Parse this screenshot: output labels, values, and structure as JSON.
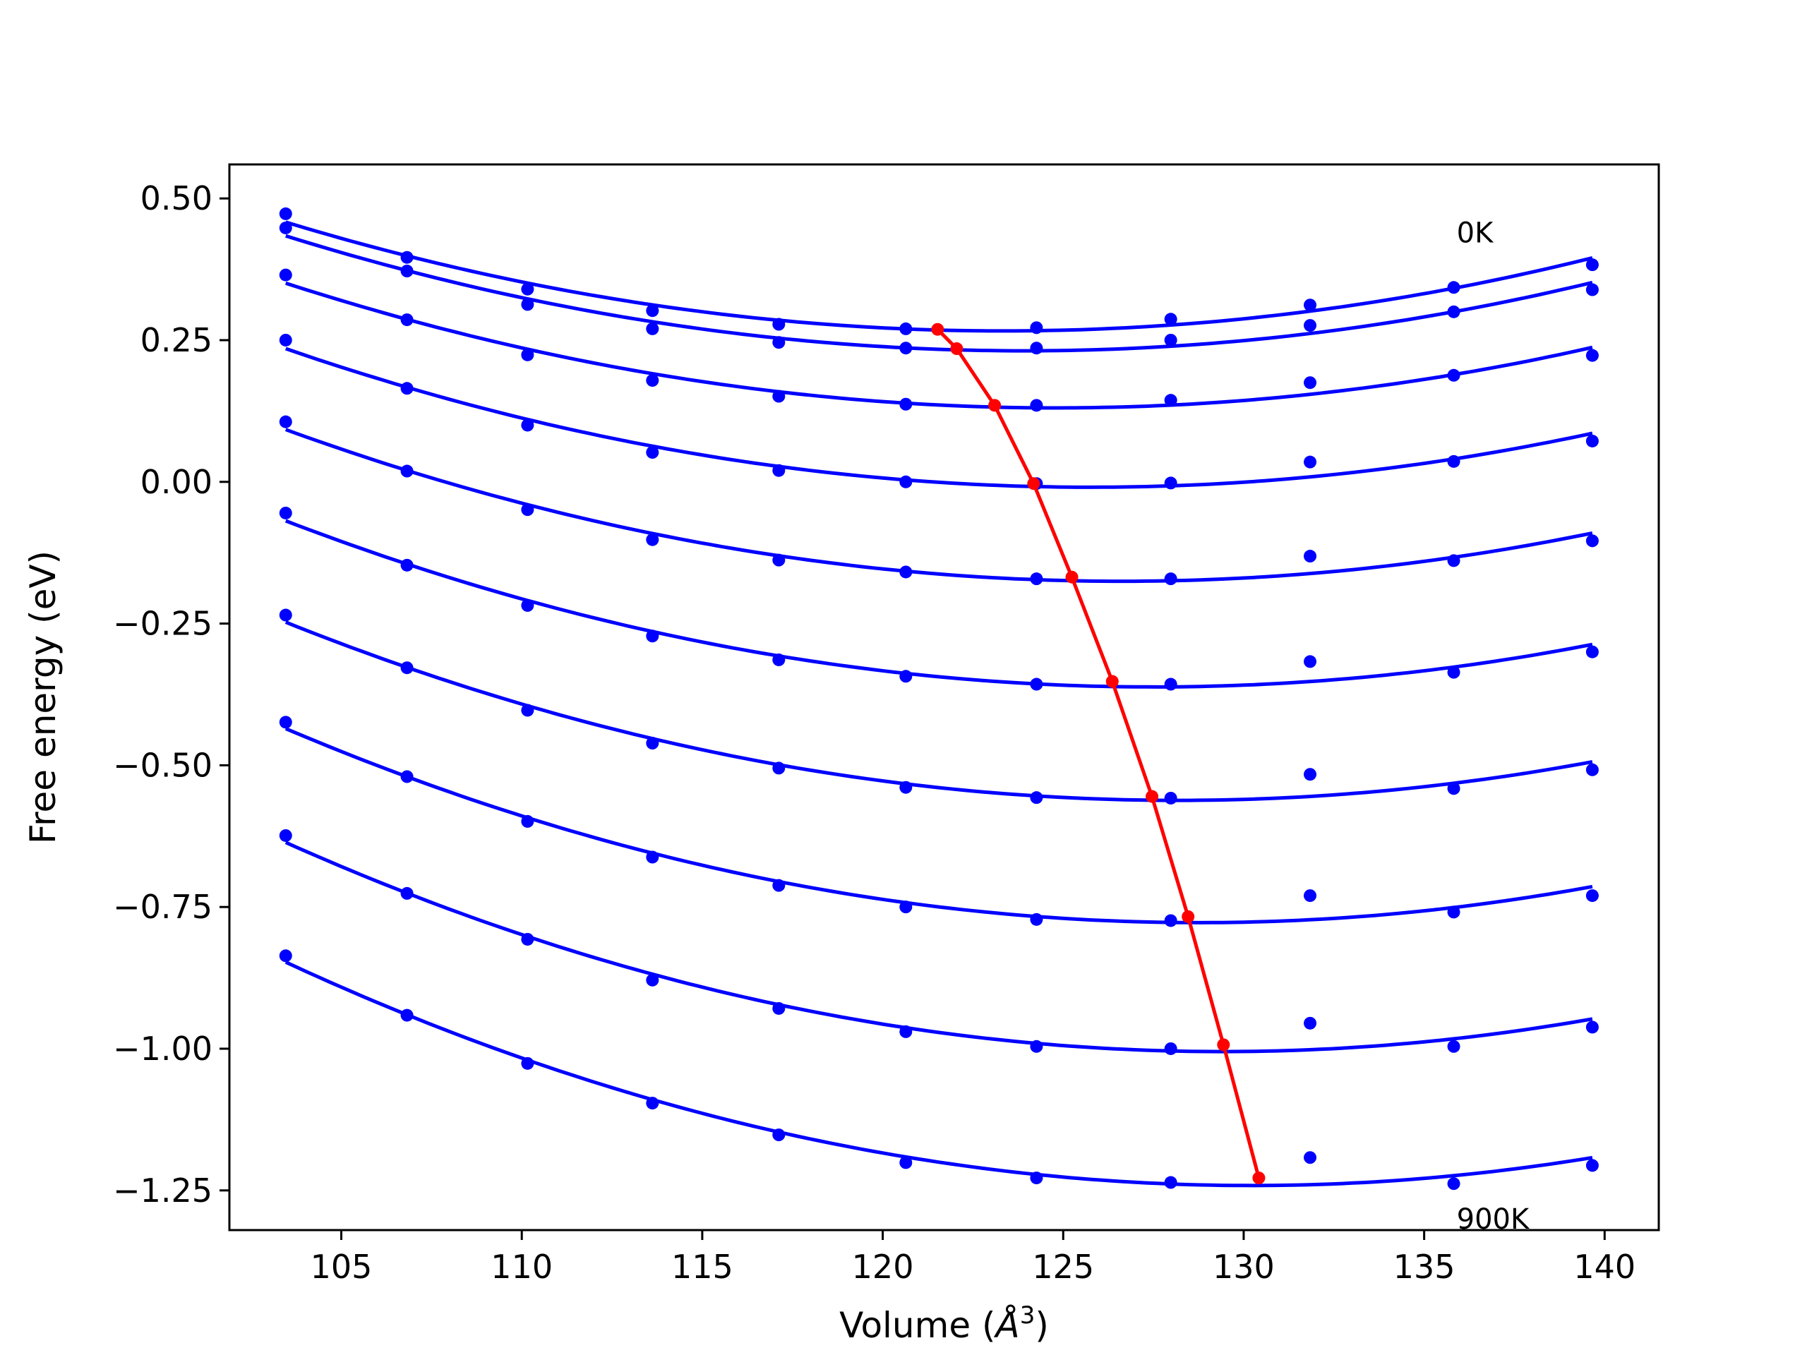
{
  "chart_data": {
    "type": "line",
    "title": "",
    "xlabel": "Volume (",
    "xlabel_symbol": "Å",
    "xlabel_power": "3",
    "xlabel_suffix": ")",
    "ylabel": "Free energy (eV)",
    "xlim": [
      101.9,
      141.5
    ],
    "ylim": [
      -1.32,
      0.56
    ],
    "xticks": [
      105,
      110,
      115,
      120,
      125,
      130,
      135,
      140
    ],
    "xtick_labels": [
      "105",
      "110",
      "115",
      "120",
      "125",
      "130",
      "135",
      "140"
    ],
    "yticks": [
      0.5,
      0.25,
      0.0,
      -0.25,
      -0.5,
      -0.75,
      -1.0,
      -1.25
    ],
    "ytick_labels": [
      "0.50",
      "0.25",
      "0.00",
      "−0.25",
      "−0.50",
      "−0.75",
      "−1.00",
      "−1.25"
    ],
    "grid": false,
    "annotations": [
      {
        "text": "0K",
        "x": 135.9,
        "y": 0.44
      },
      {
        "text": "900K",
        "x": 135.9,
        "y": -1.3
      }
    ],
    "volumes": [
      103.46,
      106.82,
      110.16,
      113.62,
      117.12,
      120.64,
      124.26,
      127.98,
      131.84,
      135.82,
      139.66
    ],
    "series": [
      {
        "points": [
          0.473,
          0.396,
          0.34,
          0.302,
          0.278,
          0.27,
          0.272,
          0.287,
          0.312,
          0.343,
          0.383
        ],
        "fit_min": [
          121.52,
          0.269
        ]
      },
      {
        "points": [
          0.448,
          0.372,
          0.313,
          0.27,
          0.246,
          0.236,
          0.236,
          0.25,
          0.276,
          0.3,
          0.339
        ],
        "fit_min": [
          122.05,
          0.235
        ]
      },
      {
        "points": [
          0.365,
          0.286,
          0.224,
          0.179,
          0.151,
          0.137,
          0.135,
          0.144,
          0.175,
          0.188,
          0.223
        ],
        "fit_min": [
          123.1,
          0.135
        ]
      },
      {
        "points": [
          0.106,
          0.019,
          -0.047,
          -0.095,
          -0.129,
          -0.149,
          -0.161,
          -0.165,
          -0.167,
          -0.169,
          -0.167
        ],
        "fit_min": null
      },
      {
        "points": [
          0.25,
          0.165,
          0.1,
          0.052,
          0.02,
          0.0,
          -0.003,
          -0.002,
          0.035,
          0.036,
          0.072
        ],
        "fit_min": [
          124.18,
          -0.003
        ]
      },
      {
        "points": [
          -0.055,
          -0.147,
          -0.218,
          -0.272,
          -0.314,
          -0.343,
          -0.357,
          -0.355,
          -0.316,
          -0.335,
          -0.3
        ],
        "fit_min": null
      },
      {
        "points": [
          -0.055,
          -0.147,
          -0.218,
          -0.272,
          -0.314,
          -0.343,
          -0.357,
          -0.355,
          -0.316,
          -0.335,
          -0.3
        ],
        "fit_min": null
      }
    ],
    "curves": [
      {
        "points": [
          0.473,
          0.396,
          0.34,
          0.302,
          0.278,
          0.27,
          0.272,
          0.287,
          0.312,
          0.343,
          0.383
        ]
      },
      {
        "points": [
          0.448,
          0.372,
          0.313,
          0.27,
          0.246,
          0.236,
          0.236,
          0.25,
          0.276,
          0.3,
          0.339
        ]
      },
      {
        "points": [
          0.365,
          0.286,
          0.224,
          0.179,
          0.151,
          0.137,
          0.135,
          0.144,
          0.175,
          0.188,
          0.223
        ]
      },
      {
        "points": [
          0.25,
          0.165,
          0.1,
          0.052,
          0.02,
          0.0,
          -0.003,
          -0.002,
          0.035,
          0.036,
          0.072
        ]
      },
      {
        "points": [
          0.106,
          0.019,
          -0.049,
          -0.102,
          -0.138,
          -0.159,
          -0.171,
          -0.171,
          -0.131,
          -0.139,
          -0.104
        ]
      },
      {
        "points": [
          -0.055,
          -0.147,
          -0.218,
          -0.272,
          -0.314,
          -0.343,
          -0.357,
          -0.357,
          -0.317,
          -0.336,
          -0.3
        ]
      },
      {
        "points": [
          -0.235,
          -0.328,
          -0.403,
          -0.461,
          -0.505,
          -0.539,
          -0.557,
          -0.558,
          -0.516,
          -0.541,
          -0.508
        ]
      },
      {
        "points": [
          -0.424,
          -0.52,
          -0.599,
          -0.662,
          -0.712,
          -0.75,
          -0.772,
          -0.774,
          -0.73,
          -0.759,
          -0.73
        ]
      },
      {
        "points": [
          -0.624,
          -0.726,
          -0.807,
          -0.879,
          -0.929,
          -0.97,
          -0.996,
          -1.0,
          -0.955,
          -0.996,
          -0.962
        ]
      },
      {
        "points": [
          -0.836,
          -0.941,
          -1.026,
          -1.096,
          -1.152,
          -1.201,
          -1.228,
          -1.236,
          -1.192,
          -1.238,
          -1.206
        ]
      }
    ],
    "minimum_line": {
      "x": [
        121.52,
        122.05,
        123.1,
        124.18,
        125.24,
        126.36,
        127.46,
        128.46,
        129.44,
        130.42
      ],
      "y": [
        0.269,
        0.235,
        0.135,
        -0.003,
        -0.168,
        -0.352,
        -0.555,
        -0.767,
        -0.993,
        -1.228
      ]
    },
    "colors": {
      "curve": "#0000ff",
      "minimum_line": "#ff0000",
      "axes": "#000000"
    }
  }
}
